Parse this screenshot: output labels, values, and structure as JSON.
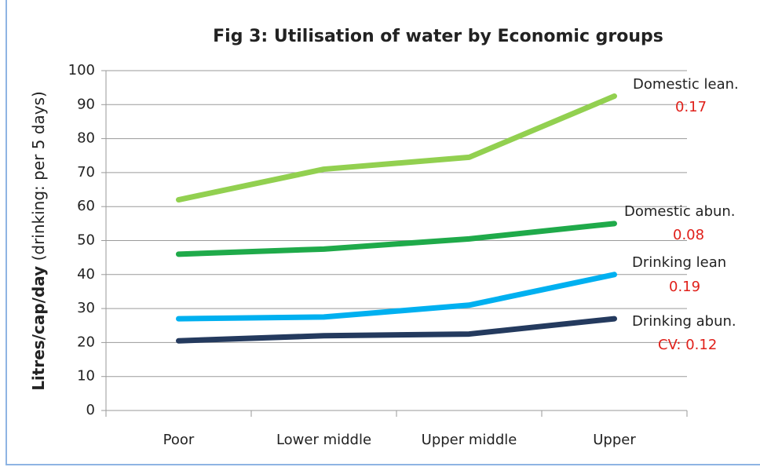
{
  "chart_data": {
    "type": "line",
    "title": "Fig 3: Utilisation of water by Economic groups",
    "ylabel": "Litres/cap/day",
    "ylabel_note": "(drinking: per 5 days)",
    "categories": [
      "Poor",
      "Lower middle",
      "Upper middle",
      "Upper"
    ],
    "series": [
      {
        "name": "Domestic lean.",
        "note": "0.17",
        "color": "#92d050",
        "values": [
          62,
          71,
          74.5,
          92.5
        ]
      },
      {
        "name": "Domestic abun.",
        "note": "0.08",
        "color": "#1faa4a",
        "values": [
          46,
          47.5,
          50.5,
          55
        ]
      },
      {
        "name": "Drinking lean",
        "note": "0.19",
        "color": "#00b0f0",
        "values": [
          27,
          27.5,
          31,
          40
        ]
      },
      {
        "name": "Drinking abun.",
        "note": "CV: 0.12",
        "color": "#243a5e",
        "values": [
          20.5,
          22,
          22.5,
          27
        ]
      }
    ],
    "ylim": [
      0,
      100
    ],
    "yticks": [
      0,
      10,
      20,
      30,
      40,
      50,
      60,
      70,
      80,
      90,
      100
    ],
    "grid": true
  }
}
